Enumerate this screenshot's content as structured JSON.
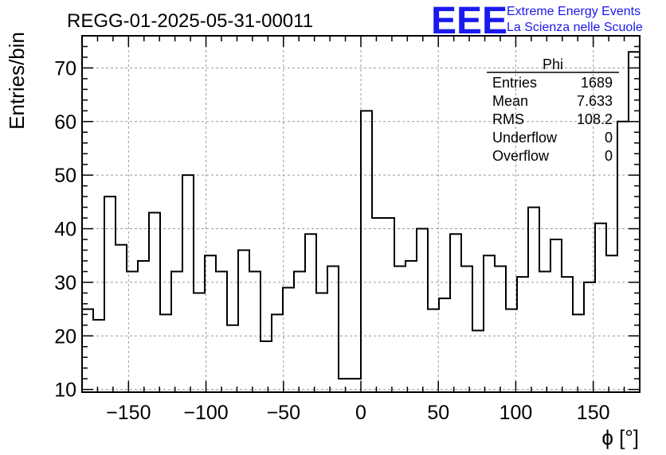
{
  "header": {
    "run_title": "REGG-01-2025-05-31-00011",
    "logo_text": "EEE",
    "logo_line1": "Extreme Energy Events",
    "logo_line2": "La Scienza nelle Scuole",
    "logo_color": "#1a1aee"
  },
  "stats_box": {
    "title": "Phi",
    "rows": [
      {
        "label": "Entries",
        "value": "1689"
      },
      {
        "label": "Mean",
        "value": "7.633"
      },
      {
        "label": "RMS",
        "value": "108.2"
      },
      {
        "label": "Underflow",
        "value": "0"
      },
      {
        "label": "Overflow",
        "value": "0"
      }
    ]
  },
  "chart_data": {
    "type": "histogram",
    "title": "REGG-01-2025-05-31-00011",
    "xlabel": "ϕ [°]",
    "ylabel": "Entries/bin",
    "xlim": [
      -180,
      180
    ],
    "ylim": [
      9.5,
      76
    ],
    "bin_edges_start": -180,
    "bin_width": 7.2,
    "values": [
      25,
      23,
      46,
      37,
      32,
      34,
      43,
      24,
      32,
      50,
      28,
      35,
      32,
      22,
      36,
      32,
      19,
      24,
      29,
      32,
      39,
      28,
      33,
      12,
      12,
      62,
      42,
      42,
      33,
      34,
      40,
      25,
      27,
      39,
      33,
      21,
      35,
      33,
      25,
      31,
      44,
      32,
      38,
      31,
      24,
      30,
      41,
      35,
      60,
      73
    ],
    "x_ticks": [
      -150,
      -100,
      -50,
      0,
      50,
      100,
      150
    ],
    "x_tick_labels": [
      "−150",
      "−100",
      "−50",
      "0",
      "50",
      "100",
      "150"
    ],
    "y_ticks": [
      10,
      20,
      30,
      40,
      50,
      60,
      70
    ],
    "y_tick_labels": [
      "10",
      "20",
      "30",
      "40",
      "50",
      "60",
      "70"
    ],
    "grid": true,
    "line_color": "#000000",
    "grid_color": "#999999"
  }
}
